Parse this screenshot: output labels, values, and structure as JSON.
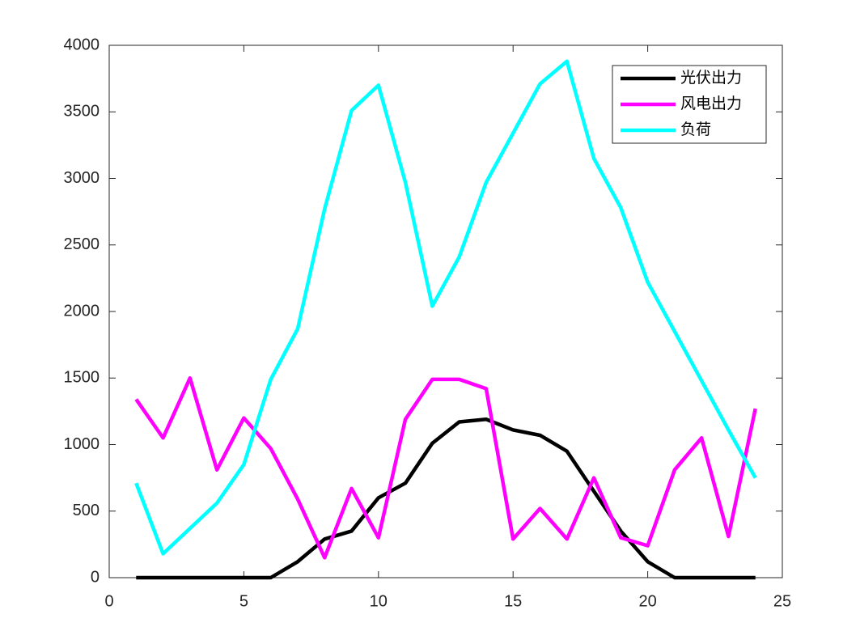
{
  "chart_data": {
    "type": "line",
    "x": [
      1,
      2,
      3,
      4,
      5,
      6,
      7,
      8,
      9,
      10,
      11,
      12,
      13,
      14,
      15,
      16,
      17,
      18,
      19,
      20,
      21,
      22,
      23,
      24
    ],
    "series": [
      {
        "name": "光伏出力",
        "color": "#000000",
        "values": [
          0,
          0,
          0,
          0,
          0,
          0,
          120,
          290,
          350,
          600,
          710,
          1010,
          1170,
          1190,
          1110,
          1070,
          950,
          650,
          350,
          120,
          0,
          0,
          0,
          0
        ]
      },
      {
        "name": "风电出力",
        "color": "#ff00ff",
        "values": [
          1340,
          1050,
          1500,
          810,
          1200,
          970,
          590,
          150,
          670,
          300,
          1190,
          1490,
          1490,
          1420,
          290,
          520,
          290,
          750,
          300,
          240,
          810,
          1050,
          310,
          1270
        ]
      },
      {
        "name": "负荷",
        "color": "#00ffff",
        "values": [
          710,
          180,
          370,
          560,
          850,
          1490,
          1870,
          2770,
          3510,
          3700,
          2970,
          2040,
          2410,
          2970,
          3340,
          3710,
          3880,
          3150,
          2780,
          2220,
          1850,
          1480,
          1110,
          750
        ]
      }
    ],
    "xlim": [
      0,
      25
    ],
    "xticks": [
      0,
      5,
      10,
      15,
      20,
      25
    ],
    "ylim": [
      0,
      4000
    ],
    "yticks": [
      0,
      500,
      1000,
      1500,
      2000,
      2500,
      3000,
      3500,
      4000
    ],
    "legend": "northeast",
    "grid": false
  }
}
